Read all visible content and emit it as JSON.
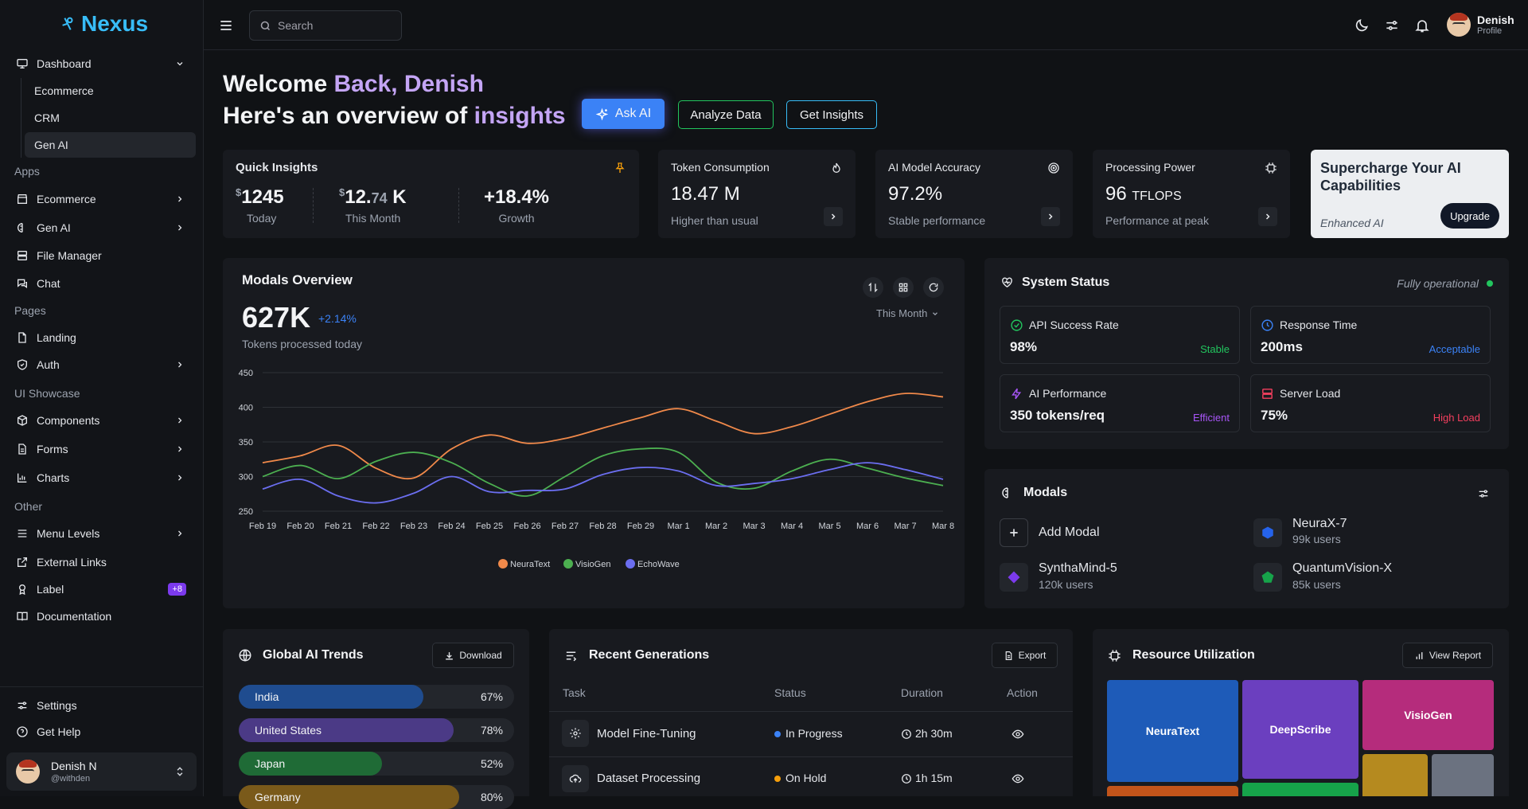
{
  "sidebar": {
    "logo": "Nexus",
    "dashboard": "Dashboard",
    "dashboard_subs": [
      "Ecommerce",
      "CRM",
      "Gen AI"
    ],
    "sections": {
      "apps": "Apps",
      "pages": "Pages",
      "ui": "UI Showcase",
      "other": "Other"
    },
    "apps": [
      "Ecommerce",
      "Gen AI",
      "File Manager",
      "Chat"
    ],
    "pages": [
      "Landing",
      "Auth"
    ],
    "ui": [
      "Components",
      "Forms",
      "Charts"
    ],
    "other": [
      "Menu Levels",
      "External Links",
      "Label",
      "Documentation"
    ],
    "label_badge": "+8",
    "settings": "Settings",
    "help": "Get Help",
    "user": {
      "name": "Denish N",
      "handle": "@withden"
    }
  },
  "topbar": {
    "search_placeholder": "Search",
    "user_name": "Denish",
    "user_sub": "Profile"
  },
  "welcome": {
    "line1_a": "Welcome ",
    "line1_b": "Back, Denish",
    "line2_a": "Here's an overview of ",
    "line2_b": "insights",
    "btn_ask": "Ask AI",
    "btn_analyze": "Analyze Data",
    "btn_insights": "Get Insights"
  },
  "quick": {
    "title": "Quick Insights",
    "items": [
      {
        "cur": "$",
        "val": "1245",
        "dec": "",
        "suf": "",
        "label": "Today"
      },
      {
        "cur": "$",
        "val": "12.",
        "dec": "74",
        "suf": " K",
        "label": "This Month"
      },
      {
        "cur": "",
        "val": "+18.4%",
        "dec": "",
        "suf": "",
        "label": "Growth"
      }
    ]
  },
  "kpis": [
    {
      "title": "Token Consumption",
      "value": "18.47 M",
      "unit": "",
      "sub": "Higher than usual"
    },
    {
      "title": "AI Model Accuracy",
      "value": "97.2%",
      "unit": "",
      "sub": "Stable performance"
    },
    {
      "title": "Processing Power",
      "value": "96",
      "unit": "TFLOPS",
      "sub": "Performance at peak"
    }
  ],
  "promo": {
    "title": "Supercharge Your AI Capabilities",
    "sub": "Enhanced AI",
    "btn": "Upgrade"
  },
  "overview": {
    "title": "Modals Overview",
    "value": "627K",
    "change": "+2.14%",
    "sub": "Tokens processed today",
    "period": "This Month"
  },
  "chart_data": {
    "type": "line",
    "x": [
      "Feb 19",
      "Feb 20",
      "Feb 21",
      "Feb 22",
      "Feb 23",
      "Feb 24",
      "Feb 25",
      "Feb 26",
      "Feb 27",
      "Feb 28",
      "Feb 29",
      "Mar 1",
      "Mar 2",
      "Mar 3",
      "Mar 4",
      "Mar 5",
      "Mar 6",
      "Mar 7",
      "Mar 8"
    ],
    "ylim": [
      250,
      450
    ],
    "yticks": [
      250,
      300,
      350,
      400,
      450
    ],
    "series": [
      {
        "name": "NeuraText",
        "color": "#f0894a",
        "values": [
          320,
          330,
          345,
          312,
          298,
          340,
          360,
          348,
          355,
          370,
          385,
          398,
          380,
          362,
          372,
          390,
          408,
          420,
          415
        ]
      },
      {
        "name": "VisioGen",
        "color": "#4caf50",
        "values": [
          300,
          316,
          297,
          322,
          335,
          320,
          290,
          272,
          300,
          330,
          340,
          335,
          292,
          283,
          308,
          325,
          312,
          298,
          287
        ]
      },
      {
        "name": "EchoWave",
        "color": "#6b6ef0",
        "values": [
          282,
          296,
          272,
          262,
          276,
          300,
          278,
          280,
          282,
          303,
          313,
          308,
          287,
          290,
          297,
          310,
          320,
          310,
          296
        ]
      }
    ]
  },
  "status": {
    "title": "System Status",
    "state": "Fully operational",
    "items": [
      {
        "title": "API Success Rate",
        "value": "98%",
        "tag": "Stable",
        "color": "#22c55e"
      },
      {
        "title": "Response Time",
        "value": "200ms",
        "tag": "Acceptable",
        "color": "#3b82f6"
      },
      {
        "title": "AI Performance",
        "value": "350 tokens/req",
        "tag": "Efficient",
        "color": "#a855f7"
      },
      {
        "title": "Server Load",
        "value": "75%",
        "tag": "High Load",
        "color": "#f43f5e"
      }
    ]
  },
  "modals": {
    "title": "Modals",
    "add": "Add Modal",
    "items": [
      {
        "name": "NeuraX-7",
        "users": "99k users",
        "color": "#2563eb"
      },
      {
        "name": "SynthaMind-5",
        "users": "120k users",
        "color": "#7c3aed"
      },
      {
        "name": "QuantumVision-X",
        "users": "85k users",
        "color": "#16a34a"
      }
    ]
  },
  "trends": {
    "title": "Global AI Trends",
    "btn": "Download",
    "rows": [
      {
        "country": "India",
        "pct": "67%",
        "value": 67,
        "color": "#1f4c8f"
      },
      {
        "country": "United States",
        "pct": "78%",
        "value": 78,
        "color": "#4b3a86"
      },
      {
        "country": "Japan",
        "pct": "52%",
        "value": 52,
        "color": "#1f6b36"
      },
      {
        "country": "Germany",
        "pct": "80%",
        "value": 80,
        "color": "#7a5a1a"
      }
    ]
  },
  "recent": {
    "title": "Recent Generations",
    "btn": "Export",
    "headers": [
      "Task",
      "Status",
      "Duration",
      "Action"
    ],
    "rows": [
      {
        "task": "Model Fine-Tuning",
        "status": "In Progress",
        "status_color": "#3b82f6",
        "duration": "2h 30m"
      },
      {
        "task": "Dataset Processing",
        "status": "On Hold",
        "status_color": "#f59e0b",
        "duration": "1h 15m"
      }
    ]
  },
  "resource": {
    "title": "Resource Utilization",
    "btn": "View Report",
    "tiles": [
      "NeuraText",
      "DeepScribe",
      "VisioGen"
    ]
  }
}
